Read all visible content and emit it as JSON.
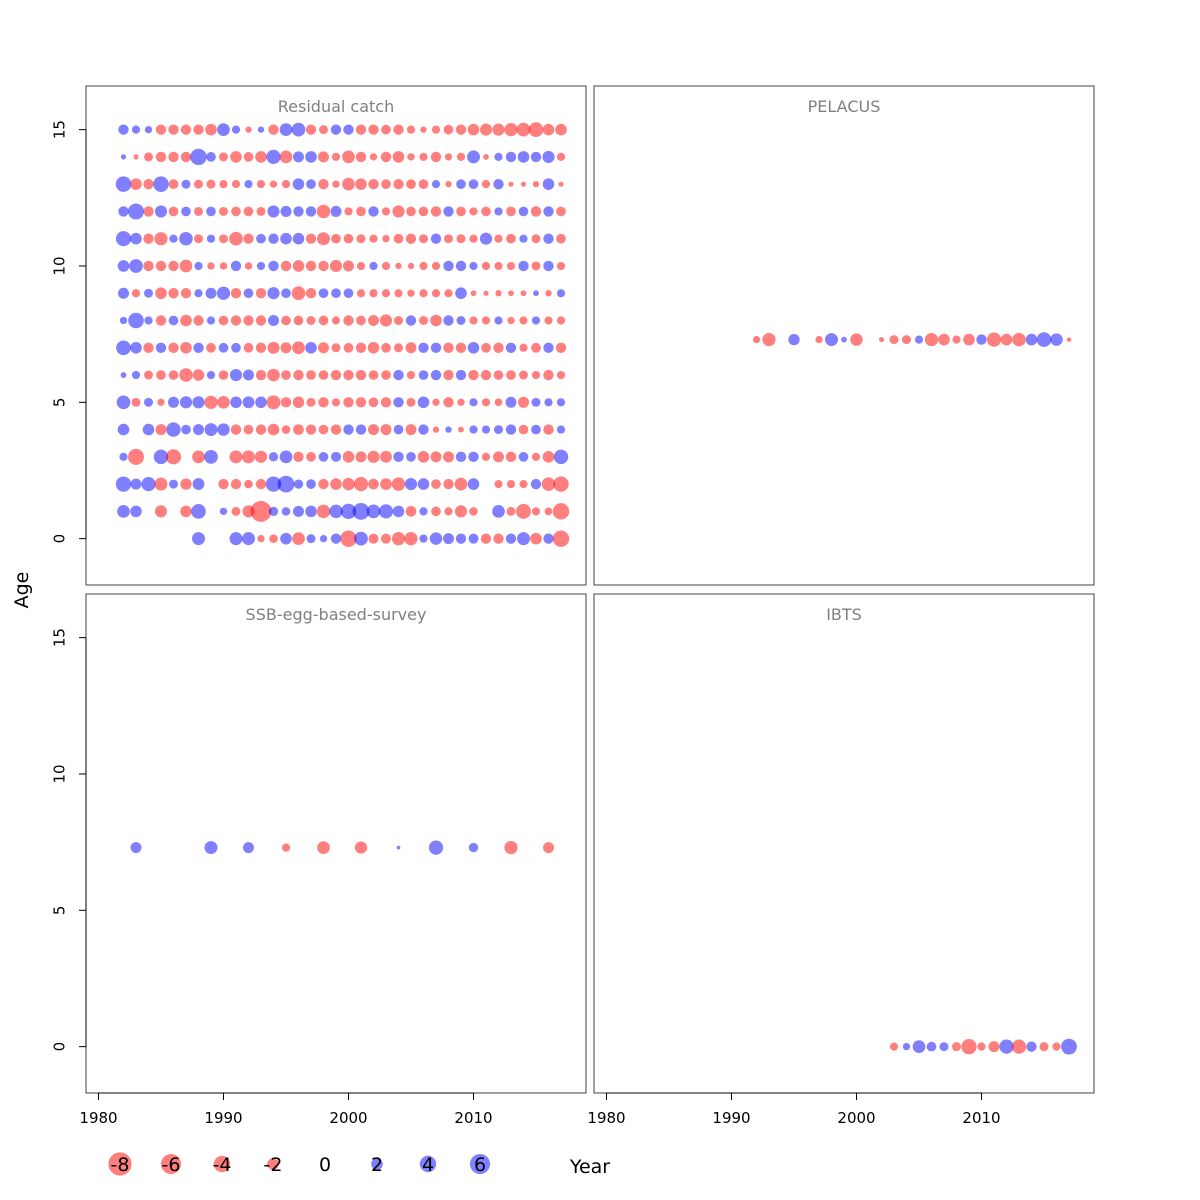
{
  "chart_data": {
    "type": "scatter",
    "subtype": "bubble",
    "xlabel": "Year",
    "ylabel": "Age",
    "xlim": [
      1979,
      2019
    ],
    "ylim": [
      -1.7,
      16.6
    ],
    "x_ticks": [
      1980,
      1990,
      2000,
      2010
    ],
    "y_ticks": [
      0,
      5,
      10,
      15
    ],
    "colors": {
      "negative": "#ff0000",
      "positive": "#0000ff",
      "opacity": 0.5
    },
    "legend": {
      "values": [
        -8,
        -6,
        -4,
        -2,
        0,
        2,
        4,
        6
      ],
      "labels": [
        "-8",
        "-6",
        "-4",
        "-2",
        "0",
        "2",
        "4",
        "6"
      ]
    },
    "panels": [
      {
        "title": "Residual catch",
        "years": [
          1982,
          1983,
          1984,
          1985,
          1986,
          1987,
          1988,
          1989,
          1990,
          1991,
          1992,
          1993,
          1994,
          1995,
          1996,
          1997,
          1998,
          1999,
          2000,
          2001,
          2002,
          2003,
          2004,
          2005,
          2006,
          2007,
          2008,
          2009,
          2010,
          2011,
          2012,
          2013,
          2014,
          2015,
          2016,
          2017
        ],
        "ages": [
          0,
          1,
          2,
          3,
          4,
          5,
          6,
          7,
          8,
          9,
          10,
          11,
          12,
          13,
          14,
          15
        ],
        "residuals": [
          [
            null,
            null,
            null,
            null,
            null,
            null,
            2.5,
            null,
            null,
            2.5,
            2.5,
            -0.8,
            -1.1,
            2.0,
            -2.4,
            1.2,
            0.8,
            1.6,
            -4.0,
            2.8,
            -1.5,
            -1.5,
            -2.6,
            -2.6,
            1.0,
            2.3,
            1.8,
            1.6,
            1.5,
            -1.6,
            -1.6,
            1.6,
            2.5,
            -2.0,
            1.6,
            -4.0
          ],
          [
            2.4,
            2.0,
            null,
            -2.2,
            null,
            -2.0,
            3.2,
            null,
            0.8,
            -1.2,
            -2.2,
            -6.5,
            1.3,
            1.1,
            1.8,
            2.0,
            -2.7,
            2.7,
            3.5,
            4.2,
            2.8,
            3.0,
            2.0,
            -1.7,
            1.0,
            -1.4,
            -1.0,
            -2.2,
            -1.1,
            null,
            2.4,
            -1.2,
            -3.3,
            -1.0,
            -0.9,
            -4.0
          ],
          [
            3.5,
            1.8,
            3.0,
            -2.5,
            1.2,
            -1.9,
            2.1,
            null,
            -1.6,
            -1.6,
            -1.1,
            -1.6,
            3.5,
            4.2,
            1.3,
            1.4,
            -1.6,
            -2.0,
            -2.3,
            -3.0,
            -1.7,
            -2.0,
            -2.7,
            2.2,
            2.0,
            -1.4,
            -1.6,
            -2.4,
            2.0,
            null,
            -1.0,
            -1.0,
            -1.0,
            1.6,
            -2.7,
            -3.5
          ],
          [
            1.0,
            -3.8,
            null,
            3.1,
            -3.4,
            null,
            -2.4,
            2.8,
            null,
            -2.5,
            -2.5,
            -2.2,
            1.3,
            2.4,
            -1.6,
            -1.4,
            1.4,
            1.5,
            -2.0,
            -1.8,
            -2.2,
            -2.1,
            1.6,
            1.4,
            -2.0,
            -1.8,
            -1.8,
            1.6,
            1.6,
            -1.0,
            -1.8,
            -1.6,
            1.4,
            -1.0,
            -2.0,
            3.1
          ],
          [
            2.0,
            null,
            2.0,
            -1.8,
            3.1,
            1.4,
            1.8,
            2.5,
            2.3,
            -1.6,
            -1.4,
            -1.6,
            -2.0,
            -1.1,
            -1.7,
            -1.6,
            -1.4,
            -1.6,
            1.6,
            1.6,
            -1.8,
            -1.8,
            1.4,
            -1.8,
            1.6,
            -0.6,
            0.6,
            -0.5,
            1.0,
            1.0,
            1.2,
            1.6,
            -1.4,
            1.4,
            -1.6,
            1.0
          ],
          [
            2.8,
            -1.2,
            1.2,
            -0.8,
            1.8,
            2.2,
            2.2,
            -2.6,
            -2.4,
            2.0,
            2.1,
            2.0,
            -2.9,
            -1.6,
            -2.0,
            -1.2,
            -1.6,
            -1.0,
            -1.6,
            -1.6,
            -1.4,
            -1.6,
            1.6,
            -1.2,
            2.0,
            -0.8,
            -1.6,
            -0.8,
            1.0,
            -1.0,
            -0.9,
            1.8,
            -1.8,
            1.2,
            1.0,
            1.0
          ],
          [
            0.5,
            1.0,
            -1.2,
            -1.4,
            -1.4,
            -2.7,
            -2.0,
            1.0,
            -1.4,
            2.2,
            1.8,
            -1.6,
            -2.4,
            -1.4,
            -1.6,
            -1.4,
            -1.4,
            -1.6,
            -1.6,
            -1.6,
            -1.4,
            -1.4,
            1.6,
            -1.0,
            1.4,
            1.6,
            -1.6,
            1.6,
            -1.6,
            -1.6,
            -1.4,
            -1.4,
            -1.2,
            -1.0,
            -1.6,
            -1.0
          ],
          [
            3.2,
            2.0,
            -1.6,
            1.6,
            -1.6,
            -2.0,
            1.6,
            -1.4,
            1.4,
            1.4,
            -1.4,
            -1.6,
            -2.2,
            -1.8,
            -2.4,
            2.0,
            -1.8,
            -1.2,
            -1.4,
            -1.6,
            -2.0,
            -1.4,
            -1.2,
            -1.8,
            1.6,
            1.6,
            -1.6,
            -1.6,
            2.0,
            -1.4,
            -1.6,
            1.6,
            -1.0,
            -1.4,
            1.6,
            -1.6
          ],
          [
            0.8,
            3.6,
            1.0,
            -1.6,
            1.4,
            -2.0,
            -1.6,
            1.0,
            -1.4,
            -1.6,
            -1.6,
            -1.6,
            1.8,
            -1.4,
            -1.4,
            -1.2,
            -1.4,
            -1.0,
            -1.6,
            -1.4,
            -1.8,
            -2.2,
            -1.2,
            1.6,
            -1.2,
            -2.0,
            1.6,
            1.2,
            -1.0,
            -1.0,
            1.0,
            -0.8,
            -1.0,
            1.0,
            -1.0,
            -1.0
          ],
          [
            1.8,
            -1.0,
            1.2,
            -2.0,
            -1.6,
            -1.6,
            1.0,
            1.8,
            2.6,
            -1.6,
            1.4,
            -1.6,
            2.2,
            1.4,
            -2.8,
            -1.6,
            1.4,
            1.4,
            1.4,
            -1.0,
            -1.0,
            -1.0,
            -1.0,
            -0.8,
            -1.0,
            -1.0,
            -1.0,
            2.0,
            -0.5,
            -0.4,
            -0.6,
            -0.5,
            -0.5,
            0.5,
            -0.6,
            1.0
          ],
          [
            2.0,
            2.8,
            -1.6,
            -1.6,
            -1.6,
            -2.4,
            1.0,
            -0.8,
            -0.8,
            1.6,
            -0.8,
            1.0,
            1.6,
            -1.6,
            -2.0,
            -1.6,
            -1.6,
            -2.2,
            -1.8,
            -1.0,
            1.0,
            -1.0,
            -0.6,
            -0.6,
            -1.0,
            -1.0,
            1.6,
            1.6,
            1.0,
            -1.0,
            -1.0,
            -1.0,
            1.6,
            -1.2,
            1.6,
            -1.0
          ],
          [
            3.4,
            2.0,
            -1.6,
            -2.6,
            1.0,
            2.7,
            -1.2,
            1.0,
            -1.2,
            -2.8,
            -1.6,
            1.4,
            1.6,
            2.0,
            2.0,
            -1.6,
            -2.5,
            -1.4,
            -1.4,
            -1.2,
            -1.0,
            -0.8,
            -1.4,
            -1.6,
            -1.2,
            1.6,
            -1.2,
            -1.2,
            -1.0,
            2.2,
            -1.0,
            -1.4,
            1.0,
            -1.2,
            1.6,
            -1.4
          ],
          [
            1.6,
            3.8,
            -1.6,
            2.2,
            -1.4,
            1.4,
            -1.2,
            1.4,
            -1.2,
            -1.4,
            -1.4,
            -1.2,
            2.2,
            1.8,
            1.6,
            1.6,
            -2.7,
            1.8,
            -1.0,
            -1.4,
            1.6,
            -1.0,
            -2.2,
            -1.4,
            -1.4,
            -1.6,
            1.6,
            -1.4,
            -1.0,
            -1.4,
            1.0,
            -1.4,
            1.4,
            -1.6,
            1.6,
            -1.4
          ],
          [
            3.6,
            -2.0,
            -1.6,
            3.6,
            -1.4,
            1.2,
            -1.2,
            -1.2,
            -1.0,
            -1.0,
            1.0,
            -1.0,
            -0.8,
            -1.0,
            2.0,
            1.4,
            -1.6,
            -0.8,
            -2.4,
            -2.0,
            -1.6,
            -1.4,
            -1.6,
            -1.4,
            -1.4,
            1.0,
            -0.6,
            1.4,
            1.4,
            -1.0,
            1.6,
            -0.4,
            -0.4,
            -0.6,
            2.0,
            -0.4
          ],
          [
            0.4,
            -0.4,
            -1.2,
            -1.6,
            -1.6,
            -1.6,
            4.0,
            1.4,
            -1.2,
            -2.0,
            -1.4,
            -2.0,
            3.0,
            -2.4,
            1.8,
            2.0,
            -1.8,
            -1.0,
            -2.4,
            -1.6,
            -0.8,
            -1.6,
            -2.0,
            -0.8,
            -1.0,
            -1.6,
            -0.8,
            -1.0,
            2.5,
            -0.5,
            1.0,
            1.6,
            2.0,
            1.6,
            2.2,
            -1.0
          ],
          [
            1.6,
            1.0,
            0.8,
            -1.6,
            -1.6,
            -1.6,
            -1.6,
            -2.0,
            2.4,
            1.0,
            -0.6,
            0.6,
            -1.6,
            2.4,
            2.8,
            -1.6,
            -1.2,
            1.6,
            1.6,
            -1.6,
            -1.6,
            -1.4,
            -1.6,
            -1.0,
            -0.6,
            -1.0,
            -1.4,
            -1.6,
            -2.0,
            -2.2,
            -2.2,
            -2.6,
            -2.8,
            -3.2,
            -2.0,
            -2.0
          ]
        ]
      },
      {
        "title": "PELACUS",
        "age": 7.3,
        "points": [
          {
            "year": 1992,
            "value": -0.8
          },
          {
            "year": 1993,
            "value": -2.6
          },
          {
            "year": 1995,
            "value": 1.9
          },
          {
            "year": 1997,
            "value": -0.8
          },
          {
            "year": 1998,
            "value": 2.5
          },
          {
            "year": 1999,
            "value": 0.5
          },
          {
            "year": 2000,
            "value": -2.3
          },
          {
            "year": 2002,
            "value": -0.4
          },
          {
            "year": 2003,
            "value": -1.2
          },
          {
            "year": 2004,
            "value": -1.2
          },
          {
            "year": 2005,
            "value": 1.0
          },
          {
            "year": 2006,
            "value": -2.6
          },
          {
            "year": 2007,
            "value": -2.0
          },
          {
            "year": 2008,
            "value": -1.0
          },
          {
            "year": 2009,
            "value": -2.0
          },
          {
            "year": 2010,
            "value": 1.6
          },
          {
            "year": 2011,
            "value": -3.0
          },
          {
            "year": 2012,
            "value": -2.0
          },
          {
            "year": 2013,
            "value": -2.7
          },
          {
            "year": 2014,
            "value": 2.0
          },
          {
            "year": 2015,
            "value": 3.2
          },
          {
            "year": 2016,
            "value": 2.3
          },
          {
            "year": 2017,
            "value": -0.3
          }
        ]
      },
      {
        "title": "SSB-egg-based-survey",
        "age": 7.3,
        "points": [
          {
            "year": 1983,
            "value": 1.8
          },
          {
            "year": 1989,
            "value": 2.5
          },
          {
            "year": 1992,
            "value": 1.8
          },
          {
            "year": 1995,
            "value": -1.0
          },
          {
            "year": 1998,
            "value": -2.4
          },
          {
            "year": 2001,
            "value": -2.2
          },
          {
            "year": 2004,
            "value": 0.2
          },
          {
            "year": 2007,
            "value": 3.0
          },
          {
            "year": 2010,
            "value": 1.3
          },
          {
            "year": 2013,
            "value": -2.6
          },
          {
            "year": 2016,
            "value": -1.8
          }
        ]
      },
      {
        "title": "IBTS",
        "age": 0,
        "points": [
          {
            "year": 2003,
            "value": -1.0
          },
          {
            "year": 2004,
            "value": 0.8
          },
          {
            "year": 2005,
            "value": 2.4
          },
          {
            "year": 2006,
            "value": 1.4
          },
          {
            "year": 2007,
            "value": 1.2
          },
          {
            "year": 2008,
            "value": -1.2
          },
          {
            "year": 2009,
            "value": -3.5
          },
          {
            "year": 2010,
            "value": -1.0
          },
          {
            "year": 2011,
            "value": -1.8
          },
          {
            "year": 2012,
            "value": 3.0
          },
          {
            "year": 2013,
            "value": -3.0
          },
          {
            "year": 2014,
            "value": 1.6
          },
          {
            "year": 2015,
            "value": -1.2
          },
          {
            "year": 2016,
            "value": -1.0
          },
          {
            "year": 2017,
            "value": 3.7
          }
        ]
      }
    ]
  }
}
